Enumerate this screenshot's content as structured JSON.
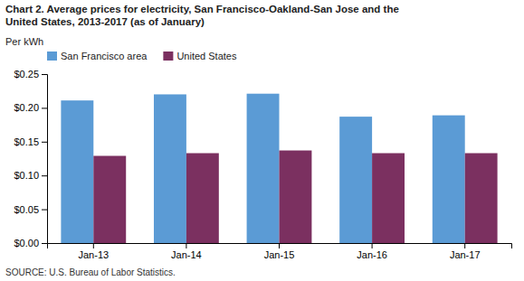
{
  "chart_data": {
    "type": "bar",
    "title": [
      "Chart 2. Average prices for electricity, San Francisco-Oakland-San Jose and the",
      "United States, 2013-2017  (as of January)"
    ],
    "y_label": "Per kWh",
    "source": "SOURCE: U.S. Bureau of Labor Statistics.",
    "categories": [
      "Jan-13",
      "Jan-14",
      "Jan-15",
      "Jan-16",
      "Jan-17"
    ],
    "series": [
      {
        "name": "San Francisco area",
        "color": "#5B9BD5",
        "values": [
          0.211,
          0.22,
          0.221,
          0.187,
          0.189
        ]
      },
      {
        "name": "United States",
        "color": "#7B3060",
        "values": [
          0.129,
          0.133,
          0.137,
          0.133,
          0.133
        ]
      }
    ],
    "ylim": [
      0,
      0.25
    ],
    "yticks": [
      {
        "value": 0,
        "label": "$0.00"
      },
      {
        "value": 0.05,
        "label": "$0.05"
      },
      {
        "value": 0.1,
        "label": "$0.10"
      },
      {
        "value": 0.15,
        "label": "$0.15"
      },
      {
        "value": 0.2,
        "label": "$0.20"
      },
      {
        "value": 0.25,
        "label": "$0.25"
      }
    ],
    "grid": false,
    "legend": "upper left"
  }
}
